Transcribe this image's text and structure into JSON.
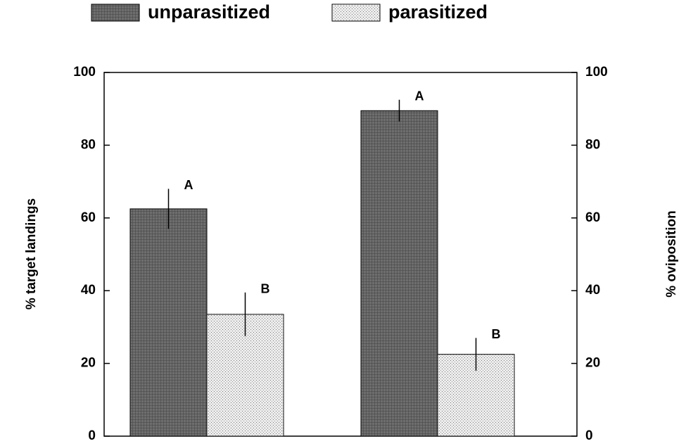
{
  "chart_data": {
    "type": "bar",
    "y_label": "% target landings",
    "y2_label": "% oviposition",
    "categories": [
      null,
      null
    ],
    "series": [
      {
        "name": "unparasitized",
        "color": "#6e6e6e",
        "values": [
          62.5,
          89.5
        ],
        "errors": [
          5.5,
          3
        ],
        "labels": [
          "A",
          "A"
        ]
      },
      {
        "name": "parasitized",
        "color": "#ececec",
        "values": [
          33.5,
          22.5
        ],
        "errors": [
          6,
          4.5
        ],
        "labels": [
          "B",
          "B"
        ]
      }
    ],
    "ylim": [
      0,
      100
    ],
    "yticks": [
      0,
      20,
      40,
      60,
      80,
      100
    ],
    "y2lim": [
      0,
      100
    ],
    "y2ticks": [
      0,
      20,
      40,
      60,
      80,
      100
    ],
    "legend": "top"
  }
}
